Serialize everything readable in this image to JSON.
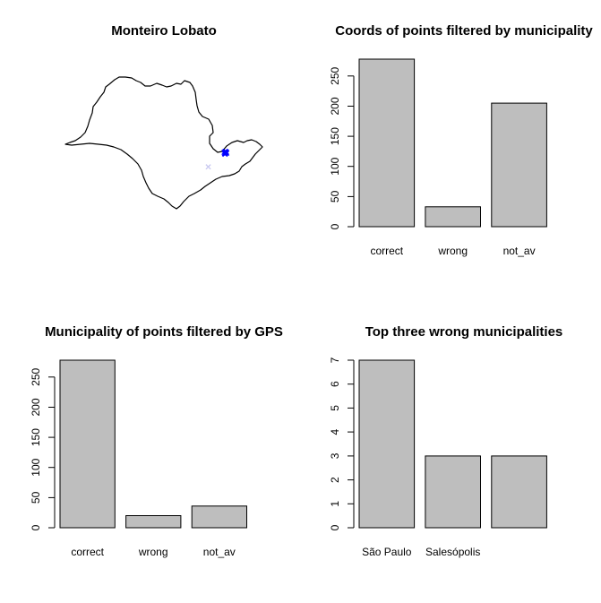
{
  "colors": {
    "bar_fill": "#bebebe",
    "bar_stroke": "#000000",
    "point_correct": "#0000ff",
    "point_other": "#c8c8f0"
  },
  "map_panel": {
    "title": "Monteiro Lobato",
    "region_name": "São Paulo state outline",
    "marker": "x",
    "points": [
      {
        "lon": -45.84,
        "lat": -22.95,
        "group": "correct"
      },
      {
        "lon": -45.88,
        "lat": -22.99,
        "group": "correct"
      },
      {
        "lon": -45.8,
        "lat": -22.92,
        "group": "correct"
      },
      {
        "lon": -45.86,
        "lat": -23.02,
        "group": "correct"
      },
      {
        "lon": -45.83,
        "lat": -22.98,
        "group": "correct"
      },
      {
        "lon": -45.9,
        "lat": -22.94,
        "group": "correct"
      },
      {
        "lon": -45.78,
        "lat": -22.97,
        "group": "correct"
      },
      {
        "lon": -45.85,
        "lat": -22.9,
        "group": "correct"
      },
      {
        "lon": -46.62,
        "lat": -23.55,
        "group": "other"
      }
    ]
  },
  "chart_data": [
    {
      "type": "bar",
      "title": "Coords of points filtered by municipality",
      "categories": [
        "correct",
        "wrong",
        "not_av"
      ],
      "values": [
        278,
        33,
        205
      ],
      "ylim": [
        0,
        278
      ],
      "yticks": [
        "0",
        "50",
        "100",
        "150",
        "200",
        "250"
      ],
      "xlabel": "",
      "ylabel": ""
    },
    {
      "type": "bar",
      "title": "Municipality of points filtered by GPS",
      "categories": [
        "correct",
        "wrong",
        "not_av"
      ],
      "values": [
        278,
        20,
        36
      ],
      "ylim": [
        0,
        278
      ],
      "yticks": [
        "0",
        "50",
        "100",
        "150",
        "200",
        "250"
      ],
      "xlabel": "",
      "ylabel": ""
    },
    {
      "type": "bar",
      "title": "Top three wrong municipalities",
      "categories": [
        "São Paulo",
        "Salesópolis",
        ""
      ],
      "values": [
        7,
        3,
        3
      ],
      "ylim": [
        0,
        7
      ],
      "yticks": [
        "0",
        "1",
        "2",
        "3",
        "4",
        "5",
        "6",
        "7"
      ],
      "xlabel": "",
      "ylabel": ""
    }
  ]
}
